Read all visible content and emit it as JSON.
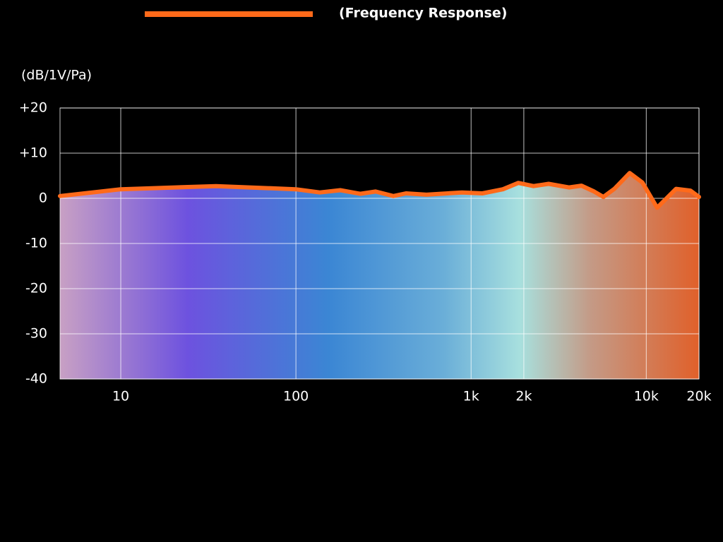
{
  "chart_data": {
    "type": "line",
    "y_label": "(dB/1V/Pa)",
    "x_scale": "log",
    "grid": true,
    "legend": "top",
    "x": [
      4.5,
      10,
      35,
      100,
      137,
      179,
      233,
      285,
      360,
      425,
      556,
      887,
      1160,
      1520,
      1860,
      2270,
      2770,
      3620,
      4270,
      5040,
      5690,
      6580,
      8040,
      9500,
      11530,
      14790,
      17860,
      20000
    ],
    "series": [
      {
        "name": "(Frequency Response)",
        "color": "#ff6a1a",
        "values": [
          0.5,
          2,
          2.7,
          2,
          1.3,
          1.8,
          1,
          1.5,
          0.5,
          1.1,
          0.8,
          1.3,
          1.1,
          2,
          3.4,
          2.7,
          3.2,
          2.4,
          2.8,
          1.5,
          0.3,
          2.1,
          5.6,
          3.5,
          -2.1,
          2.1,
          1.7,
          0.3
        ]
      }
    ],
    "xlim": [
      4.5,
      20000
    ],
    "xticks": [
      10,
      100,
      {
        "value": 1000,
        "label": "1k"
      },
      {
        "value": 2000,
        "label": "2k"
      },
      {
        "value": 10000,
        "label": "10k"
      },
      {
        "value": 20000,
        "label": "20k"
      }
    ],
    "ylim": [
      -40,
      20
    ],
    "yticks": [
      -40,
      -30,
      -20,
      -10,
      0,
      {
        "value": 10,
        "label": "+10"
      },
      {
        "value": 20,
        "label": "+20"
      }
    ]
  }
}
